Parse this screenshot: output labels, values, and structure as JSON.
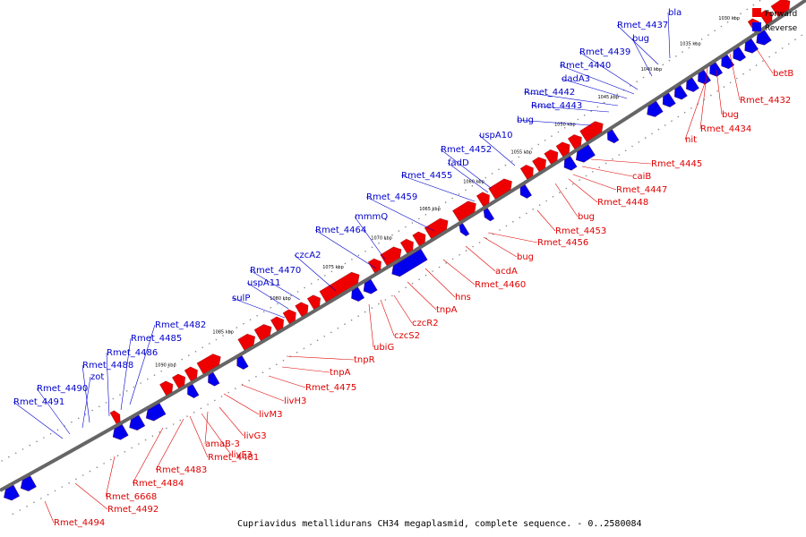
{
  "caption": "Cupriavidus metallidurans CH34 megaplasmid, complete sequence. - 0..2580084",
  "legend": [
    {
      "label": "Forward",
      "color": "#ee0000"
    },
    {
      "label": "Reverse",
      "color": "#0000ee"
    }
  ],
  "ticks": [
    "1030 kbp",
    "1035 kbp",
    "1040 kbp",
    "1045 kbp",
    "1050 kbp",
    "1055 kbp",
    "1060 kbp",
    "1065 kbp",
    "1070 kbp",
    "1075 kbp",
    "1080 kbp",
    "1085 kbp",
    "1090 kbp"
  ],
  "forward_genes": [
    "betB",
    "Rmet_4432",
    "bug",
    "Rmet_4434",
    "nit",
    "Rmet_4445",
    "caiB",
    "Rmet_4447",
    "Rmet_4448",
    "bug",
    "Rmet_4453",
    "Rmet_4456",
    "bug",
    "acdA",
    "Rmet_4460",
    "hns",
    "tnpA",
    "czcR2",
    "czcS2",
    "ubiG",
    "tnpR",
    "tnpA",
    "Rmet_4475",
    "livH3",
    "livM3",
    "livG3",
    "amaB-3",
    "livF3",
    "Rmet_4481",
    "Rmet_4483",
    "Rmet_4484",
    "Rmet_6668",
    "Rmet_4492",
    "Rmet_4494"
  ],
  "reverse_genes": [
    "bla",
    "Rmet_4437",
    "bug",
    "Rmet_4439",
    "Rmet_4440",
    "dadA3",
    "Rmet_4442",
    "Rmet_4443",
    "bug",
    "uspA10",
    "Rmet_4452",
    "fadD",
    "Rmet_4455",
    "Rmet_4459",
    "mmmQ",
    "Rmet_4464",
    "czcA2",
    "Rmet_4470",
    "uspA11",
    "sulP",
    "Rmet_4482",
    "Rmet_4485",
    "Rmet_4486",
    "Rmet_4488",
    "zot",
    "Rmet_4490",
    "Rmet_4491"
  ]
}
